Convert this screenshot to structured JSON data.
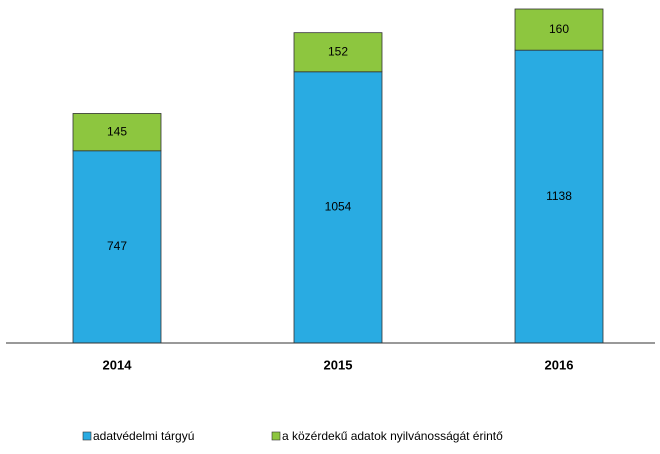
{
  "chart_data": {
    "type": "stacked_bar",
    "categories": [
      "2014",
      "2015",
      "2016"
    ],
    "series": [
      {
        "name": "adatvédelmi tárgyú",
        "color": "#29abe2",
        "values": [
          747,
          1054,
          1138
        ]
      },
      {
        "name": "a közérdekű adatok nyilvánosságát érintő",
        "color": "#8dc63f",
        "values": [
          145,
          152,
          160
        ]
      }
    ],
    "legend": "bottom"
  }
}
